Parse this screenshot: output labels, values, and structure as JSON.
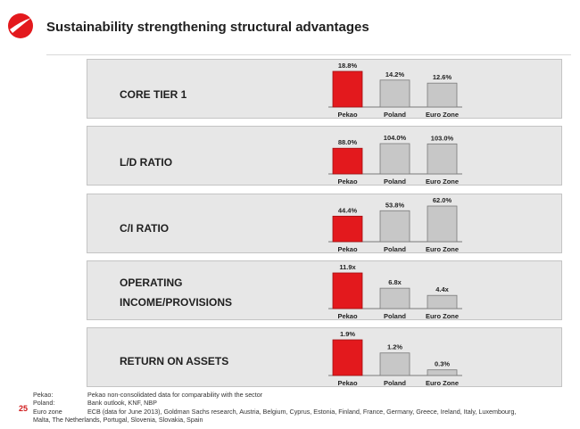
{
  "slide": {
    "title": "Sustainability strengthening structural advantages",
    "page_number": "25"
  },
  "colors": {
    "accent": "#e3191d",
    "bar_grey": "#c7c7c7",
    "panel_bg": "#e7e7e7"
  },
  "icons": [
    "unicredit-logo-icon"
  ],
  "panels": [
    {
      "label": "CORE TIER 1"
    },
    {
      "label": "L/D RATIO"
    },
    {
      "label": "C/I  RATIO"
    },
    {
      "label": "OPERATING\nINCOME/PROVISIONS"
    },
    {
      "label": "RETURN ON ASSETS"
    }
  ],
  "chart_data": [
    {
      "type": "bar",
      "categories": [
        "Pekao",
        "Poland",
        "Euro Zone"
      ],
      "values": [
        18.8,
        14.2,
        12.6
      ],
      "data_labels": [
        "18.8%",
        "14.2%",
        "12.6%"
      ]
    },
    {
      "type": "bar",
      "categories": [
        "Pekao",
        "Poland",
        "Euro Zone"
      ],
      "values": [
        88.0,
        104.0,
        103.0
      ],
      "data_labels": [
        "88.0%",
        "104.0%",
        "103.0%"
      ]
    },
    {
      "type": "bar",
      "categories": [
        "Pekao",
        "Poland",
        "Euro Zone"
      ],
      "values": [
        44.4,
        53.8,
        62.0
      ],
      "data_labels": [
        "44.4%",
        "53.8%",
        "62.0%"
      ]
    },
    {
      "type": "bar",
      "categories": [
        "Pekao",
        "Poland",
        "Euro Zone"
      ],
      "values": [
        11.9,
        6.8,
        4.4
      ],
      "data_labels": [
        "11.9x",
        "6.8x",
        "4.4x"
      ]
    },
    {
      "type": "bar",
      "categories": [
        "Pekao",
        "Poland",
        "Euro Zone"
      ],
      "values": [
        1.9,
        1.2,
        0.3
      ],
      "data_labels": [
        "1.9%",
        "1.2%",
        "0.3%"
      ]
    }
  ],
  "footnotes": [
    {
      "key": "Pekao:",
      "text": "Pekao non-consolidated data for comparability with the sector"
    },
    {
      "key": "Poland:",
      "text": "Bank outlook, KNF, NBP"
    },
    {
      "key": "Euro zone",
      "text": "ECB (data for June 2013), Goldman Sachs research, Austria, Belgium, Cyprus, Estonia, Finland, France, Germany, Greece, Ireland, Italy,  Luxembourg,"
    },
    {
      "key": "",
      "text": "Malta, The Netherlands, Portugal, Slovenia, Slovakia, Spain"
    }
  ]
}
